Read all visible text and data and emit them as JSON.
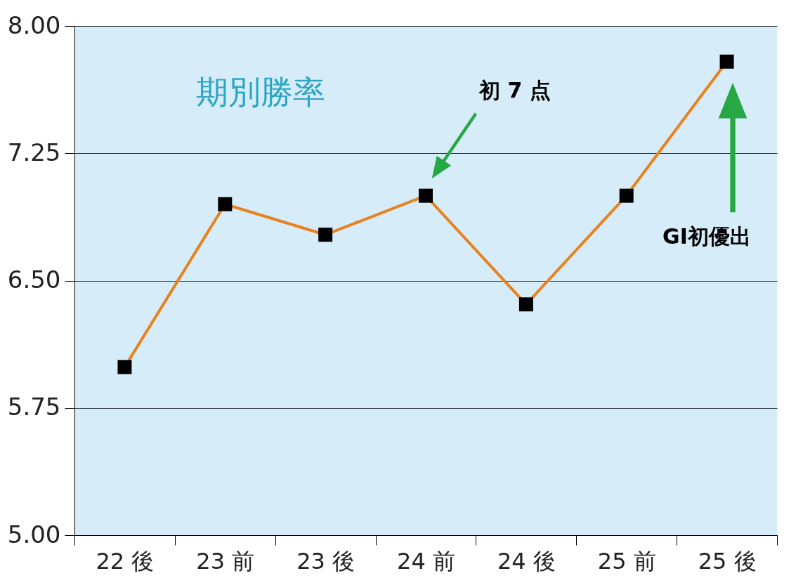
{
  "chart_data": {
    "type": "line",
    "title": "期別勝率",
    "categories": [
      "22 後",
      "23 前",
      "23 後",
      "24 前",
      "24 後",
      "25 前",
      "25 後"
    ],
    "series": [
      {
        "color": "#e8821e",
        "values": [
          5.99,
          6.95,
          6.77,
          7.0,
          6.36,
          7.0,
          7.79
        ]
      }
    ],
    "ylim": [
      5.0,
      8.0
    ],
    "yticks": [
      {
        "value": 5.0,
        "label": "5.00"
      },
      {
        "value": 5.75,
        "label": "5.75"
      },
      {
        "value": 6.5,
        "label": "6.50"
      },
      {
        "value": 7.25,
        "label": "7.25"
      },
      {
        "value": 8.0,
        "label": "8.00"
      }
    ],
    "grid": "y",
    "marker": "square",
    "line_style": "solid",
    "annotations": [
      "初 7 点",
      "GI初優出"
    ]
  }
}
